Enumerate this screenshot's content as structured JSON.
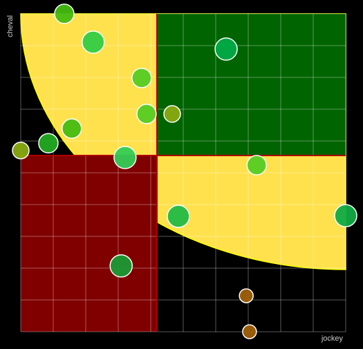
{
  "chart_data": {
    "type": "bubble",
    "x_label": "jockey",
    "y_label": "cheval",
    "xlim": [
      0,
      100
    ],
    "ylim": [
      0,
      100
    ],
    "xticks": [
      0,
      10,
      20,
      30,
      40,
      50,
      60,
      70,
      80,
      90,
      100
    ],
    "yticks": [
      0,
      10,
      20,
      30,
      40,
      50,
      60,
      70,
      80,
      90,
      100
    ],
    "grid": true,
    "x": [
      13.4,
      22.3,
      63.2,
      37.2,
      38.7,
      46.6,
      15.7,
      8.5,
      0,
      32.1,
      72.6,
      48.5,
      100,
      30.9,
      69.4,
      70.4
    ],
    "values": [
      100,
      91.1,
      88.9,
      79.8,
      68.5,
      68.5,
      63.9,
      59.3,
      57,
      54.8,
      52.4,
      36.3,
      36.5,
      20.7,
      11.3,
      0
    ],
    "sizes": [
      14,
      16,
      16,
      14,
      14,
      12,
      14,
      14,
      12,
      16,
      14,
      16,
      16,
      16,
      10,
      10
    ],
    "colors": [
      "#44bb11",
      "#33cc44",
      "#00aa44",
      "#55cc22",
      "#55cc22",
      "#88aa11",
      "#44bb11",
      "#22aa22",
      "#88aa11",
      "#33cc55",
      "#55cc22",
      "#22bb44",
      "#11aa44",
      "#1a9933",
      "#a0600a",
      "#a0600a"
    ]
  }
}
